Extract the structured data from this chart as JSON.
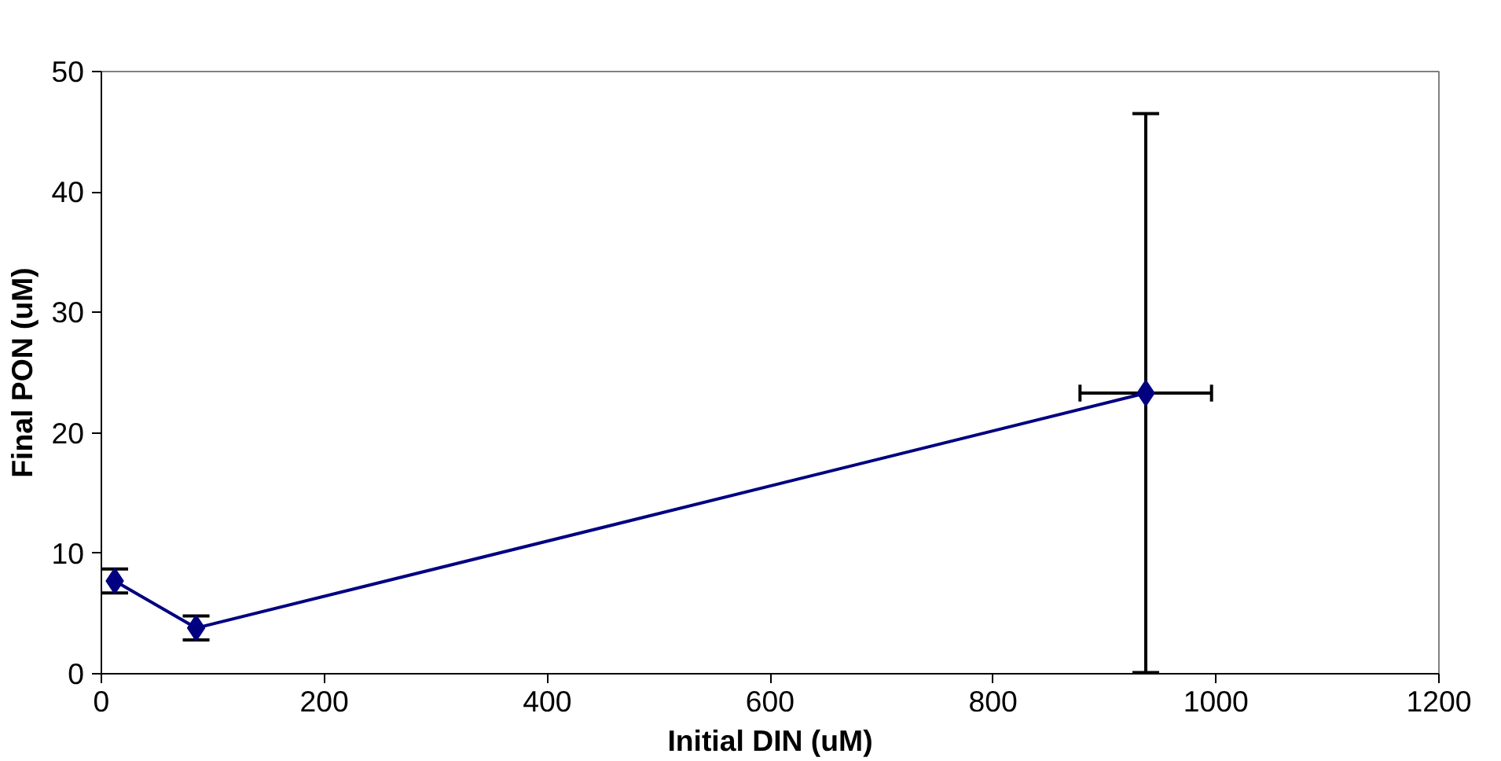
{
  "chart_data": {
    "type": "line",
    "xlabel": "Initial DIN (uM)",
    "ylabel": "Final PON (uM)",
    "x": [
      12,
      85,
      937
    ],
    "series": [
      {
        "color": "#000080",
        "values": [
          7.7,
          3.8,
          23.3
        ],
        "errors": [
          1,
          1,
          23.2
        ],
        "xerrors": [
          null,
          null,
          59
        ]
      }
    ],
    "xlim": [
      0,
      1200
    ],
    "xticks": [
      0,
      200,
      400,
      600,
      800,
      1000,
      1200
    ],
    "ylim": [
      0,
      50
    ],
    "yticks": [
      0,
      10,
      20,
      30,
      40,
      50
    ],
    "grid": false,
    "marker": "diamond",
    "line_style": "solid"
  }
}
